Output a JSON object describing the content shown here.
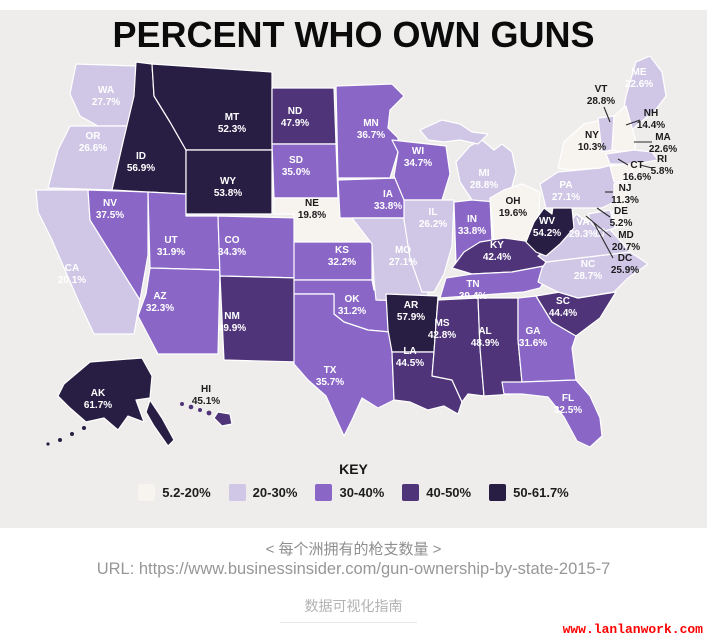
{
  "title": "PERCENT WHO OWN GUNS",
  "legend": {
    "title": "KEY",
    "items": [
      {
        "label": "5.2-20%",
        "color": "#f7f3ef"
      },
      {
        "label": "20-30%",
        "color": "#cfc7e5"
      },
      {
        "label": "30-40%",
        "color": "#8a66c7"
      },
      {
        "label": "40-50%",
        "color": "#4f3479"
      },
      {
        "label": "50-61.7%",
        "color": "#281e44"
      }
    ]
  },
  "map": {
    "border_color": "#ffffff",
    "background_color": "#eeedeb",
    "states": [
      {
        "abbr": "WA",
        "value": "27.7%",
        "bucket": 1
      },
      {
        "abbr": "OR",
        "value": "26.6%",
        "bucket": 1
      },
      {
        "abbr": "CA",
        "value": "20.1%",
        "bucket": 1
      },
      {
        "abbr": "NV",
        "value": "37.5%",
        "bucket": 2
      },
      {
        "abbr": "ID",
        "value": "56.9%",
        "bucket": 4
      },
      {
        "abbr": "UT",
        "value": "31.9%",
        "bucket": 2
      },
      {
        "abbr": "AZ",
        "value": "32.3%",
        "bucket": 2
      },
      {
        "abbr": "MT",
        "value": "52.3%",
        "bucket": 4
      },
      {
        "abbr": "WY",
        "value": "53.8%",
        "bucket": 4
      },
      {
        "abbr": "CO",
        "value": "34.3%",
        "bucket": 2
      },
      {
        "abbr": "NM",
        "value": "49.9%",
        "bucket": 3
      },
      {
        "abbr": "ND",
        "value": "47.9%",
        "bucket": 3
      },
      {
        "abbr": "SD",
        "value": "35.0%",
        "bucket": 2
      },
      {
        "abbr": "NE",
        "value": "19.8%",
        "bucket": 0
      },
      {
        "abbr": "KS",
        "value": "32.2%",
        "bucket": 2
      },
      {
        "abbr": "OK",
        "value": "31.2%",
        "bucket": 2
      },
      {
        "abbr": "TX",
        "value": "35.7%",
        "bucket": 2
      },
      {
        "abbr": "MN",
        "value": "36.7%",
        "bucket": 2
      },
      {
        "abbr": "IA",
        "value": "33.8%",
        "bucket": 2
      },
      {
        "abbr": "MO",
        "value": "27.1%",
        "bucket": 1
      },
      {
        "abbr": "AR",
        "value": "57.9%",
        "bucket": 4
      },
      {
        "abbr": "LA",
        "value": "44.5%",
        "bucket": 3
      },
      {
        "abbr": "WI",
        "value": "34.7%",
        "bucket": 2
      },
      {
        "abbr": "IL",
        "value": "26.2%",
        "bucket": 1
      },
      {
        "abbr": "IN",
        "value": "33.8%",
        "bucket": 2
      },
      {
        "abbr": "MI",
        "value": "28.8%",
        "bucket": 1
      },
      {
        "abbr": "OH",
        "value": "19.6%",
        "bucket": 0
      },
      {
        "abbr": "KY",
        "value": "42.4%",
        "bucket": 3
      },
      {
        "abbr": "TN",
        "value": "39.4%",
        "bucket": 2
      },
      {
        "abbr": "MS",
        "value": "42.8%",
        "bucket": 3
      },
      {
        "abbr": "AL",
        "value": "48.9%",
        "bucket": 3
      },
      {
        "abbr": "GA",
        "value": "31.6%",
        "bucket": 2
      },
      {
        "abbr": "FL",
        "value": "32.5%",
        "bucket": 2
      },
      {
        "abbr": "SC",
        "value": "44.4%",
        "bucket": 3
      },
      {
        "abbr": "NC",
        "value": "28.7%",
        "bucket": 1
      },
      {
        "abbr": "VA",
        "value": "29.3%",
        "bucket": 1
      },
      {
        "abbr": "WV",
        "value": "54.2%",
        "bucket": 4
      },
      {
        "abbr": "PA",
        "value": "27.1%",
        "bucket": 1
      },
      {
        "abbr": "NY",
        "value": "10.3%",
        "bucket": 0
      },
      {
        "abbr": "ME",
        "value": "22.6%",
        "bucket": 1
      },
      {
        "abbr": "VT",
        "value": "28.8%",
        "bucket": 1,
        "callout": true
      },
      {
        "abbr": "NH",
        "value": "14.4%",
        "bucket": 0,
        "callout": true
      },
      {
        "abbr": "MA",
        "value": "22.6%",
        "bucket": 1,
        "callout": true
      },
      {
        "abbr": "CT",
        "value": "16.6%",
        "bucket": 0,
        "callout": true
      },
      {
        "abbr": "RI",
        "value": "5.8%",
        "bucket": 0,
        "callout": true
      },
      {
        "abbr": "NJ",
        "value": "11.3%",
        "bucket": 0,
        "callout": true
      },
      {
        "abbr": "DE",
        "value": "5.2%",
        "bucket": 0,
        "callout": true
      },
      {
        "abbr": "MD",
        "value": "20.7%",
        "bucket": 1,
        "callout": true
      },
      {
        "abbr": "DC",
        "value": "25.9%",
        "bucket": 1,
        "callout": true
      },
      {
        "abbr": "AK",
        "value": "61.7%",
        "bucket": 4
      },
      {
        "abbr": "HI",
        "value": "45.1%",
        "bucket": 3,
        "callout": true
      }
    ]
  },
  "captions": {
    "subtitle_zh": "< 每个洲拥有的枪支数量 >",
    "source_url": "URL: https://www.businessinsider.com/gun-ownership-by-state-2015-7",
    "footer_zh": "数据可视化指南",
    "watermark": "www.lanlanwork.com",
    "watermark_color": "#ff0000"
  },
  "chart_data": {
    "type": "choropleth_map",
    "title": "PERCENT WHO OWN GUNS",
    "unit": "percent of adults who own guns",
    "legend_position": "bottom",
    "legend_buckets": [
      "5.2-20%",
      "20-30%",
      "30-40%",
      "40-50%",
      "50-61.7%"
    ],
    "range": [
      5.2,
      61.7
    ],
    "values": {
      "AK": 61.7,
      "AL": 48.9,
      "AR": 57.9,
      "AZ": 32.3,
      "CA": 20.1,
      "CO": 34.3,
      "CT": 16.6,
      "DC": 25.9,
      "DE": 5.2,
      "FL": 32.5,
      "GA": 31.6,
      "HI": 45.1,
      "IA": 33.8,
      "ID": 56.9,
      "IL": 26.2,
      "IN": 33.8,
      "KS": 32.2,
      "KY": 42.4,
      "LA": 44.5,
      "MA": 22.6,
      "MD": 20.7,
      "ME": 22.6,
      "MI": 28.8,
      "MN": 36.7,
      "MO": 27.1,
      "MS": 42.8,
      "MT": 52.3,
      "NC": 28.7,
      "ND": 47.9,
      "NE": 19.8,
      "NH": 14.4,
      "NJ": 11.3,
      "NM": 49.9,
      "NV": 37.5,
      "NY": 10.3,
      "OH": 19.6,
      "OK": 31.2,
      "OR": 26.6,
      "PA": 27.1,
      "RI": 5.8,
      "SC": 44.4,
      "SD": 35.0,
      "TN": 39.4,
      "TX": 35.7,
      "UT": 31.9,
      "VA": 29.3,
      "VT": 28.8,
      "WA": 27.7,
      "WI": 34.7,
      "WV": 54.2,
      "WY": 53.8
    }
  }
}
